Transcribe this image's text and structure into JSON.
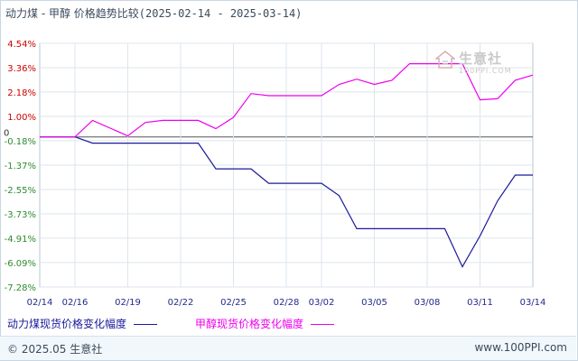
{
  "title": {
    "text": "动力煤 - 甲醇 价格趋势比较",
    "range": "(2025-02-14 - 2025-03-14)"
  },
  "watermark": {
    "cn": "生意社",
    "en": "100PPI.COM"
  },
  "footer": {
    "copyright": "© 2025.05 生意社",
    "site": "www.100PPI.com"
  },
  "colors": {
    "series_a": "#1a1a9a",
    "series_b": "#ee00ee",
    "tick_red": "#cc0000",
    "tick_green": "#2e8b2e",
    "zero_tick": "#333333"
  },
  "chart_data": {
    "type": "line",
    "title": "动力煤 - 甲醇 价格趋势比较",
    "xlabel": "",
    "ylabel": "",
    "ylim": [
      -7.28,
      4.54
    ],
    "xlim": [
      0,
      28
    ],
    "y_ticks": [
      4.54,
      3.36,
      2.18,
      1.0,
      0,
      -0.18,
      -1.37,
      -2.55,
      -3.73,
      -4.91,
      -6.09,
      -7.28
    ],
    "y_tick_labels": [
      "4.54%",
      "3.36%",
      "2.18%",
      "1.00%",
      "0",
      "-0.18%",
      "-1.37%",
      "-2.55%",
      "-3.73%",
      "-4.91%",
      "-6.09%",
      "-7.28%"
    ],
    "x_ticks": [
      0,
      2,
      5,
      8,
      11,
      14,
      16,
      19,
      22,
      25,
      28
    ],
    "x_tick_labels": [
      "02/14",
      "02/16",
      "02/19",
      "02/22",
      "02/25",
      "02/28",
      "03/02",
      "03/05",
      "03/08",
      "03/11",
      "03/14"
    ],
    "grid": true,
    "legend_position": "bottom",
    "series": [
      {
        "name": "动力煤现货价格变化幅度",
        "color": "#1a1a9a",
        "x": [
          0,
          2,
          3,
          9,
          10,
          12,
          13,
          16,
          17,
          18,
          23,
          24,
          25,
          26,
          27,
          28
        ],
        "values": [
          0,
          0,
          -0.3,
          -0.3,
          -1.55,
          -1.55,
          -2.25,
          -2.25,
          -2.85,
          -4.45,
          -4.45,
          -6.3,
          -4.8,
          -3.1,
          -1.85,
          -1.85
        ]
      },
      {
        "name": "甲醇现货价格变化幅度",
        "color": "#ee00ee",
        "x": [
          0,
          2,
          3,
          5,
          6,
          7,
          9,
          10,
          11,
          12,
          13,
          14,
          16,
          17,
          18,
          19,
          20,
          21,
          22,
          23,
          24,
          25,
          26,
          27,
          28
        ],
        "values": [
          0,
          0,
          0.8,
          0.05,
          0.7,
          0.8,
          0.8,
          0.4,
          0.95,
          2.1,
          2.0,
          2.0,
          2.0,
          2.55,
          2.8,
          2.55,
          2.75,
          3.55,
          3.55,
          3.55,
          3.55,
          1.8,
          1.85,
          2.75,
          3.0
        ]
      }
    ]
  },
  "legend": {
    "a": "动力煤现货价格变化幅度 —",
    "b": "甲醇现货价格变化幅度 —"
  }
}
